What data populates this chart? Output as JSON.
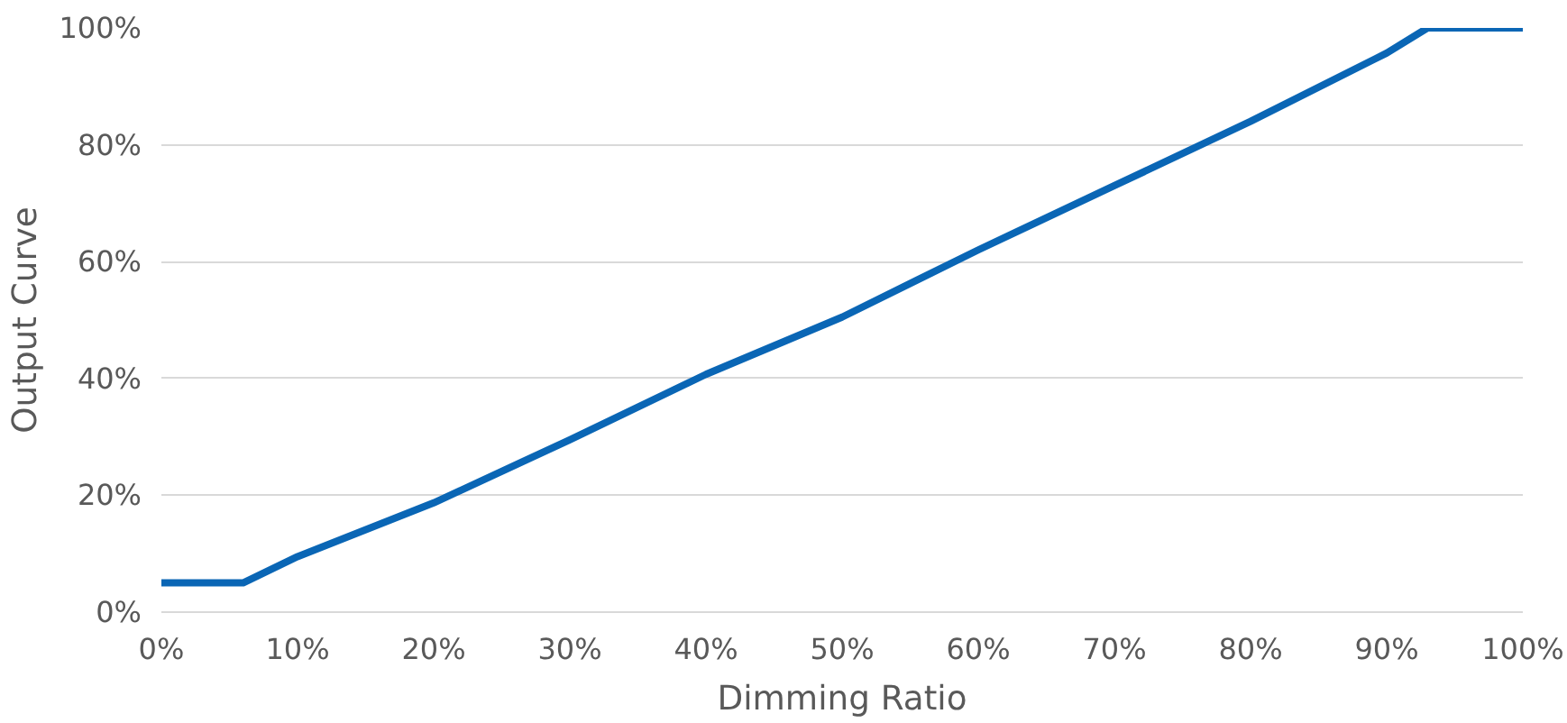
{
  "chart_data": {
    "type": "line",
    "xlabel": "Dimming Ratio",
    "ylabel": "Output Curve",
    "x": [
      0,
      6,
      10,
      20,
      30,
      40,
      50,
      60,
      70,
      80,
      90,
      93,
      100
    ],
    "series": [
      {
        "color": "#0a66b5",
        "values": [
          5,
          5,
          9.5,
          18.7,
          29.5,
          40.7,
          50.5,
          62,
          73,
          84,
          95.7,
          100,
          100
        ]
      }
    ],
    "xlim": [
      0,
      100
    ],
    "ylim": [
      0,
      100
    ],
    "xticks": [
      {
        "value": 0,
        "label": "0%"
      },
      {
        "value": 10,
        "label": "10%"
      },
      {
        "value": 20,
        "label": "20%"
      },
      {
        "value": 30,
        "label": "30%"
      },
      {
        "value": 40,
        "label": "40%"
      },
      {
        "value": 50,
        "label": "50%"
      },
      {
        "value": 60,
        "label": "60%"
      },
      {
        "value": 70,
        "label": "70%"
      },
      {
        "value": 80,
        "label": "80%"
      },
      {
        "value": 90,
        "label": "90%"
      },
      {
        "value": 100,
        "label": "100%"
      }
    ],
    "yticks": [
      {
        "value": 0,
        "label": "0%"
      },
      {
        "value": 20,
        "label": "20%"
      },
      {
        "value": 40,
        "label": "40%"
      },
      {
        "value": 60,
        "label": "60%"
      },
      {
        "value": 80,
        "label": "80%"
      },
      {
        "value": 100,
        "label": "100%"
      }
    ],
    "grid": "y",
    "line_style": "solid",
    "marker": "none"
  }
}
